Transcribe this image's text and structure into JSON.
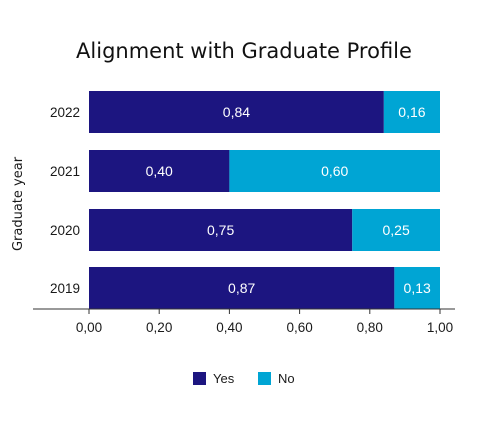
{
  "chart_data": {
    "type": "bar",
    "orientation": "horizontal",
    "stacked": true,
    "title": "Alignment with Graduate Profile",
    "xlabel": "",
    "ylabel": "Graduate year",
    "categories": [
      "2022",
      "2021",
      "2020",
      "2019"
    ],
    "series": [
      {
        "name": "Yes",
        "values": [
          0.84,
          0.4,
          0.75,
          0.87
        ],
        "labels": [
          "0,84",
          "0,40",
          "0,75",
          "0,87"
        ],
        "color": "#1c1580"
      },
      {
        "name": "No",
        "values": [
          0.16,
          0.6,
          0.25,
          0.13
        ],
        "labels": [
          "0,16",
          "0,60",
          "0,25",
          "0,13"
        ],
        "color": "#00a5d4"
      }
    ],
    "xlim": [
      0,
      1
    ],
    "xticks": [
      0,
      0.2,
      0.4,
      0.6,
      0.8,
      1.0
    ],
    "xtick_labels": [
      "0,00",
      "0,20",
      "0,40",
      "0,60",
      "0,80",
      "1,00"
    ],
    "grid": false,
    "legend": "bottom"
  }
}
